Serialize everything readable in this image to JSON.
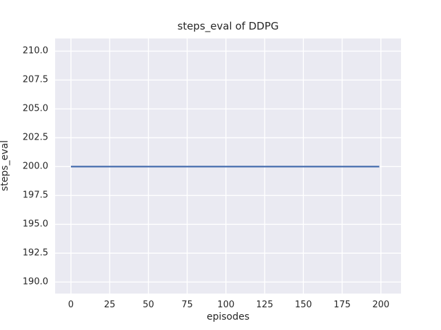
{
  "chart_data": {
    "type": "line",
    "title": "steps_eval of DDPG",
    "xlabel": "episodes",
    "ylabel": "steps_eval",
    "xlim": [
      -10.2,
      213.0
    ],
    "ylim": [
      189.0,
      211.1
    ],
    "grid": true,
    "legend": null,
    "x_ticks": [
      {
        "value": 0,
        "label": "0"
      },
      {
        "value": 25,
        "label": "25"
      },
      {
        "value": 50,
        "label": "50"
      },
      {
        "value": 75,
        "label": "75"
      },
      {
        "value": 100,
        "label": "100"
      },
      {
        "value": 125,
        "label": "125"
      },
      {
        "value": 150,
        "label": "150"
      },
      {
        "value": 175,
        "label": "175"
      },
      {
        "value": 200,
        "label": "200"
      }
    ],
    "y_ticks": [
      {
        "value": 190.0,
        "label": "190.0"
      },
      {
        "value": 192.5,
        "label": "192.5"
      },
      {
        "value": 195.0,
        "label": "195.0"
      },
      {
        "value": 197.5,
        "label": "197.5"
      },
      {
        "value": 200.0,
        "label": "200.0"
      },
      {
        "value": 202.5,
        "label": "202.5"
      },
      {
        "value": 205.0,
        "label": "205.0"
      },
      {
        "value": 207.5,
        "label": "207.5"
      },
      {
        "value": 210.0,
        "label": "210.0"
      }
    ],
    "series": [
      {
        "name": "steps_eval",
        "color": "#4c72b0",
        "linewidth": 2.4,
        "x": [
          0,
          199
        ],
        "y": [
          200,
          200
        ]
      }
    ],
    "colors": {
      "plot_background": "#eaeaf2",
      "grid": "#ffffff",
      "text": "#262626",
      "figure_background": "#ffffff"
    }
  }
}
